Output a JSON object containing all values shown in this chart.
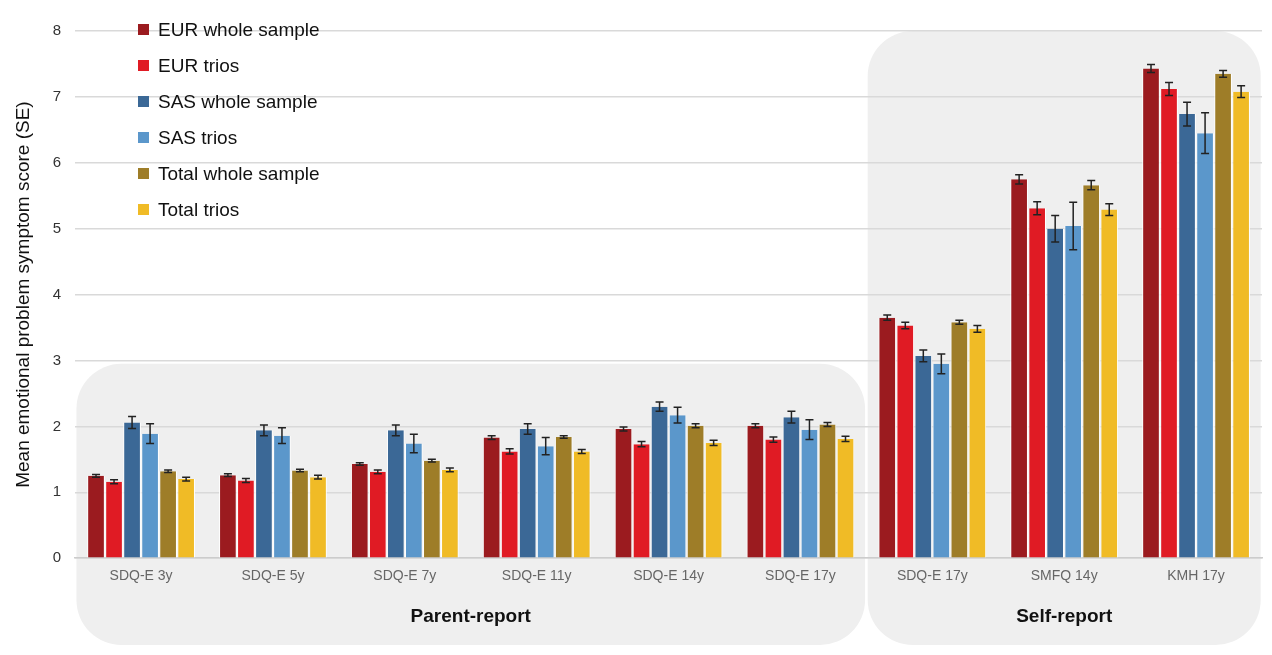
{
  "chart_data": {
    "type": "bar",
    "ylabel": "Mean emotional problem symptom score (SE)",
    "categories": [
      "SDQ-E 3y",
      "SDQ-E 5y",
      "SDQ-E 7y",
      "SDQ-E 11y",
      "SDQ-E 14y",
      "SDQ-E 17y",
      "SDQ-E 17y",
      "SMFQ 14y",
      "KMH 17y"
    ],
    "series": [
      {
        "name": "EUR whole sample",
        "color": "#9b1b1f",
        "values": [
          1.25,
          1.26,
          1.43,
          1.83,
          1.96,
          2.01,
          3.65,
          5.75,
          7.43
        ],
        "errors": [
          0.02,
          0.02,
          0.02,
          0.03,
          0.03,
          0.03,
          0.04,
          0.07,
          0.06
        ]
      },
      {
        "name": "EUR trios",
        "color": "#e01b24",
        "values": [
          1.16,
          1.18,
          1.31,
          1.62,
          1.73,
          1.8,
          3.53,
          5.31,
          7.12
        ],
        "errors": [
          0.03,
          0.03,
          0.03,
          0.04,
          0.04,
          0.04,
          0.05,
          0.1,
          0.1
        ]
      },
      {
        "name": "SAS whole sample",
        "color": "#3b6896",
        "values": [
          2.06,
          1.94,
          1.94,
          1.96,
          2.3,
          2.14,
          3.07,
          5.0,
          6.74
        ],
        "errors": [
          0.09,
          0.08,
          0.08,
          0.08,
          0.07,
          0.09,
          0.09,
          0.2,
          0.18
        ]
      },
      {
        "name": "SAS trios",
        "color": "#5b97cb",
        "values": [
          1.89,
          1.86,
          1.74,
          1.7,
          2.17,
          1.95,
          2.95,
          5.04,
          6.45
        ],
        "errors": [
          0.15,
          0.12,
          0.14,
          0.13,
          0.12,
          0.15,
          0.15,
          0.36,
          0.31
        ]
      },
      {
        "name": "Total whole sample",
        "color": "#9e7d28",
        "values": [
          1.32,
          1.33,
          1.48,
          1.84,
          2.01,
          2.03,
          3.58,
          5.66,
          7.35
        ],
        "errors": [
          0.02,
          0.02,
          0.02,
          0.02,
          0.03,
          0.03,
          0.03,
          0.07,
          0.05
        ]
      },
      {
        "name": "Total trios",
        "color": "#f0bb26",
        "values": [
          1.2,
          1.23,
          1.34,
          1.62,
          1.75,
          1.81,
          3.48,
          5.29,
          7.08
        ],
        "errors": [
          0.03,
          0.03,
          0.03,
          0.03,
          0.04,
          0.04,
          0.05,
          0.09,
          0.09
        ]
      }
    ],
    "bands": [
      {
        "axis": "x",
        "from": "SDQ-E 3y",
        "to": "SDQ-E 17y",
        "label": "Parent-report",
        "color": "#efefef"
      },
      {
        "axis": "x",
        "from": "SDQ-E 17y",
        "to": "KMH 17y",
        "label": "Self-report",
        "color": "#efefef"
      }
    ],
    "ylim": [
      0,
      8
    ],
    "yticks": [
      0,
      1,
      2,
      3,
      4,
      5,
      6,
      7,
      8
    ],
    "grid": "y",
    "legend": "top left"
  }
}
